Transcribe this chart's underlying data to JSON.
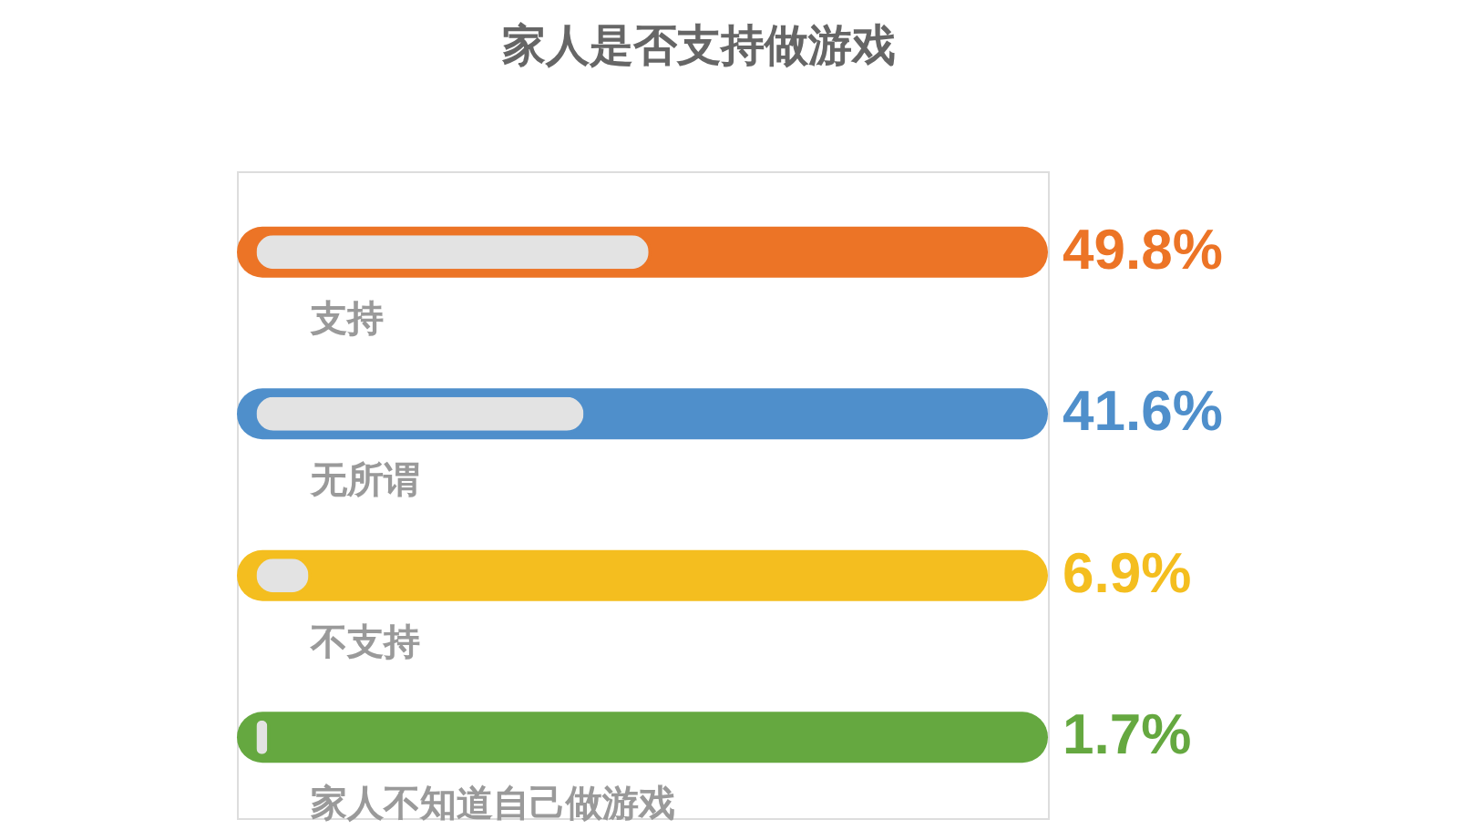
{
  "chart_data": {
    "type": "bar",
    "orientation": "horizontal",
    "title": "家人是否支持做游戏",
    "categories": [
      "支持",
      "无所谓",
      "不支持",
      "家人不知道自己做游戏"
    ],
    "values": [
      49.8,
      41.6,
      6.9,
      1.7
    ],
    "value_labels": [
      "49.8%",
      "41.6%",
      "6.9%",
      "1.7%"
    ],
    "colors": [
      "#ec7426",
      "#4f8fcb",
      "#f4be1f",
      "#65a840"
    ],
    "xlim": [
      0,
      100
    ],
    "tick_labels": "y"
  }
}
